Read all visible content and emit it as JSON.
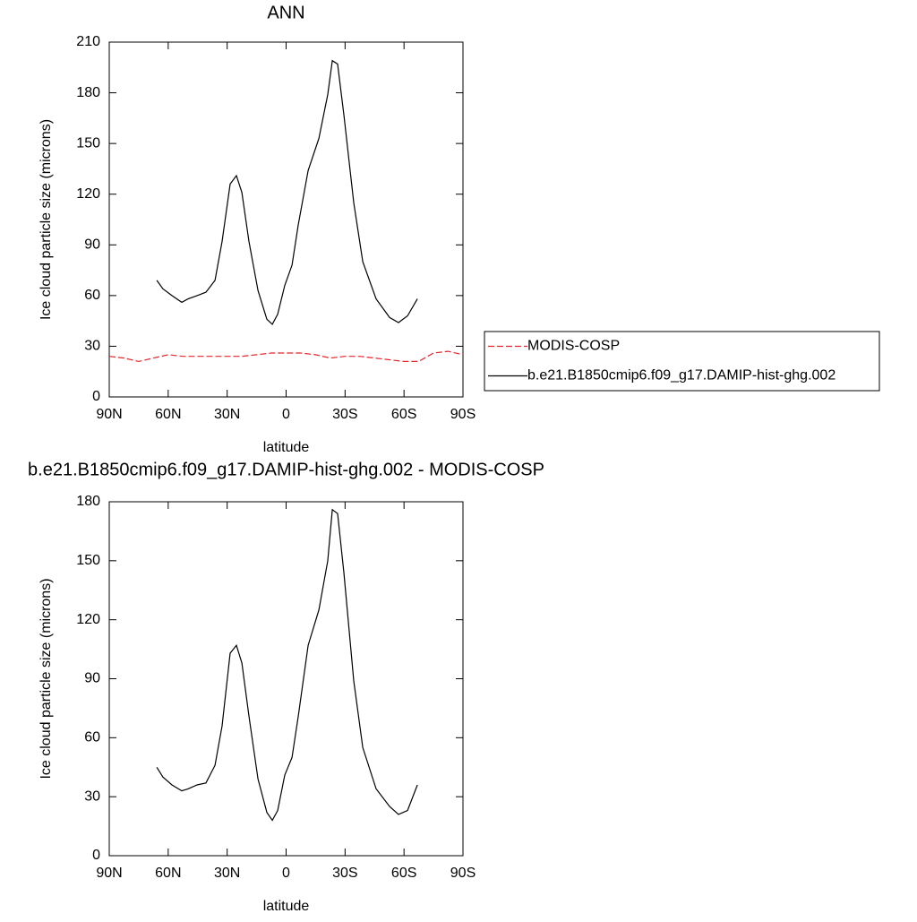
{
  "chart_data": [
    {
      "type": "line",
      "title": "ANN",
      "xlabel": "latitude",
      "ylabel": "Ice cloud particle size (microns)",
      "xlim": [
        90,
        -90
      ],
      "ylim": [
        0,
        210
      ],
      "xticks": [
        {
          "value": 90,
          "label": "90N"
        },
        {
          "value": 60,
          "label": "60N"
        },
        {
          "value": 30,
          "label": "30N"
        },
        0,
        {
          "value": -30,
          "label": "30S"
        },
        {
          "value": -60,
          "label": "60S"
        },
        {
          "value": -90,
          "label": "90S"
        }
      ],
      "yticks": [
        0,
        30,
        60,
        90,
        120,
        150,
        180,
        210
      ],
      "legend": "outside-right",
      "series": [
        {
          "name": "MODIS-COSP",
          "color": "#e8242c",
          "dash": true,
          "x": [
            90,
            82.5,
            75,
            67.5,
            60,
            52.5,
            45,
            37.5,
            30,
            22.5,
            15,
            7.5,
            0,
            -7.5,
            -15,
            -22.5,
            -30,
            -37.5,
            -45,
            -52.5,
            -60,
            -67.5,
            -75,
            -82.5,
            -90
          ],
          "values": [
            24,
            23,
            21,
            23,
            25,
            24,
            24,
            24,
            24,
            24,
            25,
            26,
            26,
            26,
            25,
            23,
            24,
            24,
            23,
            22,
            21,
            21,
            26,
            27,
            25
          ]
        },
        {
          "name": "b.e21.B1850cmip6.f09_g17.DAMIP-hist-ghg.002",
          "color": "#000000",
          "dash": false,
          "x": [
            65.8,
            62.7,
            58.1,
            53.1,
            49.9,
            45.3,
            40.8,
            36.2,
            32.6,
            28.5,
            25.3,
            22.5,
            18.9,
            14.3,
            9.8,
            7.0,
            4.3,
            0.7,
            -3.0,
            -6.2,
            -11.2,
            -16.7,
            -21.2,
            -23.5,
            -26.2,
            -29.4,
            -34.4,
            -39.0,
            -45.8,
            -52.7,
            -57.2,
            -61.8,
            -66.8
          ],
          "values": [
            69,
            64,
            60,
            56,
            58,
            60,
            62,
            69,
            92,
            126,
            131,
            121,
            92,
            63,
            46,
            43,
            49,
            66,
            78,
            102,
            134,
            153,
            179,
            199,
            197,
            167,
            115,
            80,
            58,
            47,
            44,
            48,
            58
          ]
        }
      ]
    },
    {
      "type": "line",
      "title": "b.e21.B1850cmip6.f09_g17.DAMIP-hist-ghg.002 - MODIS-COSP",
      "xlabel": "latitude",
      "ylabel": "Ice cloud particle size (microns)",
      "xlim": [
        90,
        -90
      ],
      "ylim": [
        0,
        180
      ],
      "xticks": [
        {
          "value": 90,
          "label": "90N"
        },
        {
          "value": 60,
          "label": "60N"
        },
        {
          "value": 30,
          "label": "30N"
        },
        0,
        {
          "value": -30,
          "label": "30S"
        },
        {
          "value": -60,
          "label": "60S"
        },
        {
          "value": -90,
          "label": "90S"
        }
      ],
      "yticks": [
        0,
        30,
        60,
        90,
        120,
        150,
        180
      ],
      "series": [
        {
          "color": "#000000",
          "dash": false,
          "x": [
            65.8,
            62.7,
            58.1,
            53.1,
            49.9,
            45.3,
            40.8,
            36.2,
            32.6,
            28.5,
            25.3,
            22.5,
            18.9,
            14.3,
            9.8,
            7.0,
            4.3,
            0.7,
            -3.0,
            -6.2,
            -11.2,
            -16.7,
            -21.2,
            -23.5,
            -26.2,
            -29.4,
            -34.4,
            -39.0,
            -45.8,
            -52.7,
            -57.2,
            -61.8,
            -66.8
          ],
          "values": [
            45,
            40,
            36,
            33,
            34,
            36,
            37,
            46,
            66,
            103,
            107,
            98,
            71,
            39,
            22,
            18,
            23,
            41,
            50,
            71,
            107,
            125,
            150,
            176,
            174,
            144,
            89,
            55,
            34,
            25,
            21,
            23,
            36
          ]
        }
      ]
    }
  ]
}
